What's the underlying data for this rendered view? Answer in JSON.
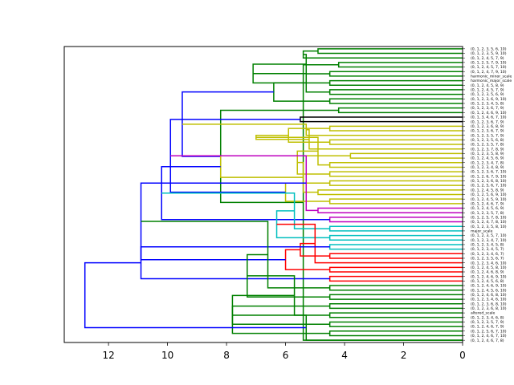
{
  "chart_data": {
    "type": "dendrogram",
    "orientation": "horizontal-right-root",
    "xlim": [
      13.5,
      0
    ],
    "xticks": [
      12,
      10,
      8,
      6,
      4,
      2,
      0
    ],
    "xtick_labels": [
      "12",
      "10",
      "8",
      "6",
      "4",
      "2",
      "0"
    ],
    "colors": {
      "C0": "#1f77b4",
      "C1": "#008000",
      "C2": "#000000",
      "C3": "#bfbf00",
      "C4": "#bf00bf",
      "C5": "#00bfbf",
      "C6": "#ff0000",
      "C7": "#0000ff"
    },
    "leaves": [
      "(0, 1, 2, 3, 5, 6, 10)",
      "(0, 1, 2, 3, 5, 9, 10)",
      "(0, 1, 2, 4, 5, 7, 9)",
      "(0, 1, 2, 5, 7, 9, 10)",
      "(0, 1, 2, 4, 5, 7, 10)",
      "(0, 1, 2, 4, 7, 9, 10)",
      "harmonic_minor_scale",
      "harmonic_major_scale",
      "(0, 1, 2, 4, 5, 8, 9)",
      "(0, 1, 2, 4, 5, 7, 9)",
      "(0, 1, 2, 3, 5, 6, 9)",
      "(0, 1, 2, 3, 6, 9, 10)",
      "(0, 1, 2, 3, 4, 5, 8)",
      "(0, 1, 2, 3, 6, 7, 9)",
      "(0, 1, 2, 4, 6, 9, 10)",
      "(0, 1, 3, 4, 6, 7, 10)",
      "(0, 1, 2, 3, 6, 7, 9)",
      "(0, 1, 2, 3, 6, 8, 9)",
      "(0, 1, 2, 3, 6, 7, 9)",
      "(0, 1, 2, 3, 5, 7, 9)",
      "(0, 1, 2, 3, 5, 6, 8)",
      "(0, 1, 2, 3, 5, 7, 8)",
      "(0, 1, 2, 3, 7, 8, 9)",
      "(0, 1, 2, 3, 5, 8, 9)",
      "(0, 1, 2, 4, 5, 6, 9)",
      "(0, 1, 2, 3, 4, 7, 8)",
      "(0, 1, 2, 3, 4, 8, 9)",
      "(0, 1, 2, 3, 6, 7, 10)",
      "(0, 1, 2, 6, 7, 9, 10)",
      "(0, 1, 2, 3, 6, 8, 10)",
      "(0, 1, 2, 5, 6, 7, 10)",
      "(0, 1, 2, 4, 5, 8, 9)",
      "(0, 1, 2, 5, 6, 9, 10)",
      "(0, 1, 2, 4, 5, 9, 10)",
      "(0, 1, 2, 4, 6, 7, 9)",
      "(0, 1, 2, 4, 5, 6, 9)",
      "(0, 1, 2, 3, 5, 7, 8)",
      "(0, 1, 2, 5, 7, 8, 10)",
      "(0, 1, 2, 4, 7, 8, 10)",
      "(0, 1, 2, 3, 5, 8, 10)",
      "major_scale",
      "(0, 1, 2, 3, 5, 7, 10)",
      "(0, 1, 2, 3, 4, 7, 10)",
      "(0, 1, 2, 3, 4, 5, 8)",
      "(0, 1, 2, 3, 4, 5, 7)",
      "(0, 1, 2, 3, 4, 6, 7)",
      "(0, 1, 2, 3, 5, 6, 7)",
      "(0, 1, 2, 3, 4, 6, 10)",
      "(0, 1, 2, 4, 5, 8, 10)",
      "(0, 1, 2, 4, 6, 8, 9)",
      "(0, 1, 2, 4, 6, 9, 10)",
      "(0, 1, 2, 4, 5, 6, 8)",
      "(0, 1, 2, 4, 6, 9, 10)",
      "(0, 1, 2, 4, 5, 6, 10)",
      "(0, 1, 2, 4, 6, 8, 10)",
      "(0, 1, 2, 3, 4, 6, 10)",
      "(0, 1, 2, 3, 6, 8, 10)",
      "(0, 1, 2, 3, 6, 8, 10)",
      "altered_scale",
      "(0, 1, 2, 3, 4, 6, 8)",
      "(0, 1, 2, 3, 5, 7, 9)",
      "(0, 1, 2, 4, 6, 7, 9)",
      "(0, 1, 2, 5, 6, 7, 10)",
      "(0, 1, 2, 4, 6, 7, 10)",
      "(0, 1, 2, 4, 6, 7, 8)"
    ],
    "links": [
      {
        "a": 0,
        "b": 1,
        "h": 4.9,
        "c": "C1"
      },
      {
        "a": 3,
        "b": 4,
        "h": 4.2,
        "c": "C1"
      },
      {
        "a": 2,
        "b": 65,
        "h": 5.4,
        "c": "C1"
      },
      {
        "a": 5,
        "b": 6,
        "h": 4.5,
        "c": "C1"
      },
      {
        "a": 7,
        "b": 8,
        "h": 4.5,
        "c": "C1"
      },
      {
        "a": 67,
        "b": 68,
        "h": 5.3,
        "c": "C1"
      },
      {
        "a": 64,
        "b": 66,
        "h": 5.4,
        "c": "C1"
      },
      {
        "a": 70,
        "b": 69,
        "h": 7.1,
        "c": "C1"
      },
      {
        "a": 9,
        "b": 10,
        "h": 4.5,
        "c": "C1"
      },
      {
        "a": 11,
        "b": 12,
        "h": 4.5,
        "c": "C1"
      },
      {
        "a": 72,
        "b": 73,
        "h": 5.3,
        "c": "C1"
      },
      {
        "a": 13,
        "b": 14,
        "h": 4.2,
        "c": "C1"
      },
      {
        "a": 74,
        "b": 75,
        "h": 6.4,
        "c": "C1"
      },
      {
        "a": 71,
        "b": 76,
        "h": 8.2,
        "c": "C1"
      },
      {
        "a": 15,
        "b": 16,
        "h": 5.5,
        "c": "C2"
      },
      {
        "a": 77,
        "b": 78,
        "h": 9.5,
        "c": "C7"
      },
      {
        "a": 17,
        "b": 18,
        "h": 4.5,
        "c": "C3"
      },
      {
        "a": 19,
        "b": 80,
        "h": 5.3,
        "c": "C3"
      },
      {
        "a": 20,
        "b": 21,
        "h": 4.5,
        "c": "C3"
      },
      {
        "a": 22,
        "b": 82,
        "h": 5.2,
        "c": "C3"
      },
      {
        "a": 81,
        "b": 83,
        "h": 5.9,
        "c": "C3"
      },
      {
        "a": 23,
        "b": 24,
        "h": 3.8,
        "c": "C3"
      },
      {
        "a": 84,
        "b": 85,
        "h": 7.0,
        "c": "C3"
      },
      {
        "a": 25,
        "b": 26,
        "h": 4.5,
        "c": "C3"
      },
      {
        "a": 27,
        "b": 28,
        "h": 4.5,
        "c": "C3"
      },
      {
        "a": 87,
        "b": 88,
        "h": 4.9,
        "c": "C3"
      },
      {
        "a": 29,
        "b": 30,
        "h": 4.5,
        "c": "C3"
      },
      {
        "a": 89,
        "b": 90,
        "h": 5.6,
        "c": "C3"
      },
      {
        "a": 31,
        "b": 32,
        "h": 4.9,
        "c": "C3"
      },
      {
        "a": 33,
        "b": 34,
        "h": 4.5,
        "c": "C3"
      },
      {
        "a": 92,
        "b": 93,
        "h": 5.4,
        "c": "C3"
      },
      {
        "a": 91,
        "b": 94,
        "h": 6.0,
        "c": "C3"
      },
      {
        "a": 86,
        "b": 95,
        "h": 8.2,
        "c": "C3"
      },
      {
        "a": 79,
        "b": 96,
        "h": 9.9,
        "c": "C7"
      },
      {
        "a": 35,
        "b": 36,
        "h": 4.9,
        "c": "C4"
      },
      {
        "a": 37,
        "b": 38,
        "h": 4.5,
        "c": "C4"
      },
      {
        "a": 98,
        "b": 99,
        "h": 5.3,
        "c": "C4"
      },
      {
        "a": 97,
        "b": 100,
        "h": 10.2,
        "c": "C7"
      },
      {
        "a": 39,
        "b": 40,
        "h": 4.5,
        "c": "C5"
      },
      {
        "a": 41,
        "b": 42,
        "h": 4.5,
        "c": "C5"
      },
      {
        "a": 102,
        "b": 103,
        "h": 5.7,
        "c": "C5"
      },
      {
        "a": 43,
        "b": 44,
        "h": 4.5,
        "c": "C5"
      },
      {
        "a": 104,
        "b": 105,
        "h": 6.3,
        "c": "C5"
      },
      {
        "a": 45,
        "b": 46,
        "h": 4.5,
        "c": "C6"
      },
      {
        "a": 47,
        "b": 107,
        "h": 5.0,
        "c": "C6"
      },
      {
        "a": 48,
        "b": 49,
        "h": 4.5,
        "c": "C6"
      },
      {
        "a": 108,
        "b": 109,
        "h": 5.5,
        "c": "C6"
      },
      {
        "a": 50,
        "b": 51,
        "h": 4.5,
        "c": "C6"
      },
      {
        "a": 110,
        "b": 111,
        "h": 6.0,
        "c": "C6"
      },
      {
        "a": 106,
        "b": 112,
        "h": 10.9,
        "c": "C7"
      },
      {
        "a": 101,
        "b": 113,
        "h": 10.9,
        "c": "C7"
      },
      {
        "a": 52,
        "b": 53,
        "h": 4.5,
        "c": "C1"
      },
      {
        "a": 54,
        "b": 55,
        "h": 4.5,
        "c": "C1"
      },
      {
        "a": 115,
        "b": 116,
        "h": 6.6,
        "c": "C1"
      },
      {
        "a": 56,
        "b": 57,
        "h": 4.5,
        "c": "C1"
      },
      {
        "a": 117,
        "b": 118,
        "h": 7.3,
        "c": "C1"
      },
      {
        "a": 58,
        "b": 59,
        "h": 4.5,
        "c": "C1"
      },
      {
        "a": 60,
        "b": 61,
        "h": 4.5,
        "c": "C1"
      },
      {
        "a": 120,
        "b": 121,
        "h": 5.7,
        "c": "C1"
      },
      {
        "a": 119,
        "b": 122,
        "h": 7.8,
        "c": "C1"
      },
      {
        "a": 62,
        "b": 63,
        "h": 4.5,
        "c": "C1"
      },
      {
        "a": 124,
        "b": 64,
        "h": 5.3,
        "c": "C1"
      },
      {
        "a": 123,
        "b": 125,
        "h": 7.8,
        "c": "C1"
      },
      {
        "a": 114,
        "b": 126,
        "h": 12.8,
        "c": "C7"
      }
    ]
  }
}
